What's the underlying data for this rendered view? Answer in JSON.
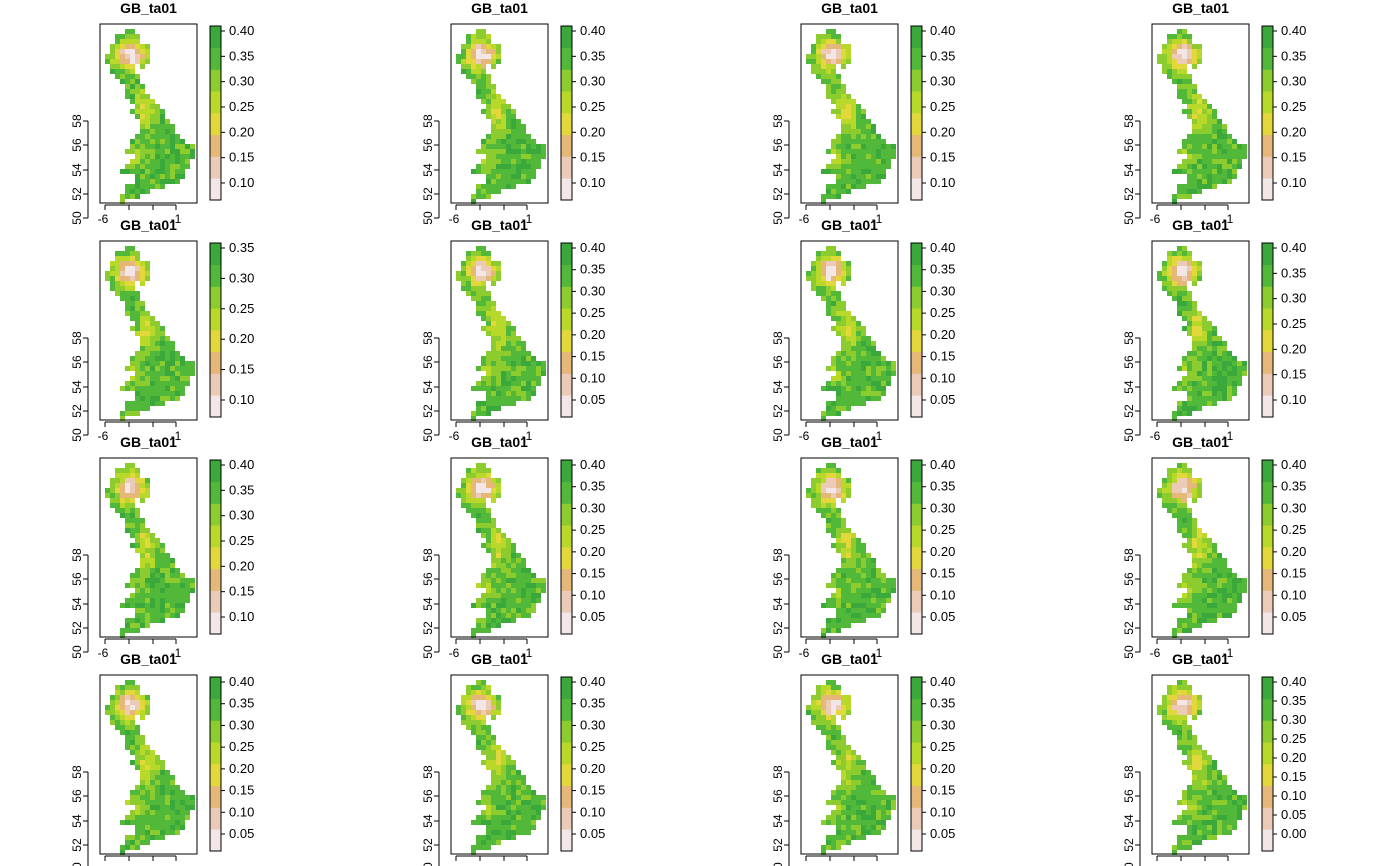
{
  "map_data": {
    "panel_titles": [
      "GB_ta01",
      "GB_ta01",
      "GB_ta01",
      "GB_ta01",
      "GB_ta01",
      "GB_ta01",
      "GB_ta01",
      "GB_ta01",
      "GB_ta01",
      "GB_ta01",
      "GB_ta01",
      "GB_ta01",
      "GB_ta01",
      "GB_ta01",
      "GB_ta01",
      "GB_ta01"
    ],
    "y_ticks": [
      "50",
      "52",
      "54",
      "56",
      "58"
    ],
    "x_tick_label_shown": "-6",
    "x_tick_label_partial": "-1",
    "colors": {
      "ramp": [
        "#f2e6e6",
        "#eccab8",
        "#e5b87a",
        "#e2d83c",
        "#b8d82a",
        "#8ccc2e",
        "#52b83a",
        "#3aa83a"
      ],
      "frame": "#000000"
    },
    "legends": [
      [
        "0.40",
        "0.35",
        "0.30",
        "0.25",
        "0.20",
        "0.15",
        "0.10"
      ],
      [
        "0.40",
        "0.35",
        "0.30",
        "0.25",
        "0.20",
        "0.15",
        "0.10"
      ],
      [
        "0.40",
        "0.35",
        "0.30",
        "0.25",
        "0.20",
        "0.15",
        "0.10"
      ],
      [
        "0.40",
        "0.35",
        "0.30",
        "0.25",
        "0.20",
        "0.15",
        "0.10"
      ],
      [
        "0.35",
        "0.30",
        "0.25",
        "0.20",
        "0.15",
        "0.10"
      ],
      [
        "0.40",
        "0.35",
        "0.30",
        "0.25",
        "0.20",
        "0.15",
        "0.10",
        "0.05"
      ],
      [
        "0.40",
        "0.35",
        "0.30",
        "0.25",
        "0.20",
        "0.15",
        "0.10",
        "0.05"
      ],
      [
        "0.40",
        "0.35",
        "0.30",
        "0.25",
        "0.20",
        "0.15",
        "0.10"
      ],
      [
        "0.40",
        "0.35",
        "0.30",
        "0.25",
        "0.20",
        "0.15",
        "0.10"
      ],
      [
        "0.40",
        "0.35",
        "0.30",
        "0.25",
        "0.20",
        "0.15",
        "0.10",
        "0.05"
      ],
      [
        "0.40",
        "0.35",
        "0.30",
        "0.25",
        "0.20",
        "0.15",
        "0.10",
        "0.05"
      ],
      [
        "0.40",
        "0.35",
        "0.30",
        "0.25",
        "0.20",
        "0.15",
        "0.10",
        "0.05"
      ],
      [
        "0.40",
        "0.35",
        "0.30",
        "0.25",
        "0.20",
        "0.15",
        "0.10",
        "0.05"
      ],
      [
        "0.40",
        "0.35",
        "0.30",
        "0.25",
        "0.20",
        "0.15",
        "0.10",
        "0.05"
      ],
      [
        "0.40",
        "0.35",
        "0.30",
        "0.25",
        "0.20",
        "0.15",
        "0.10",
        "0.05"
      ],
      [
        "0.40",
        "0.35",
        "0.30",
        "0.25",
        "0.20",
        "0.15",
        "0.10",
        "0.05",
        "0.00"
      ]
    ]
  }
}
